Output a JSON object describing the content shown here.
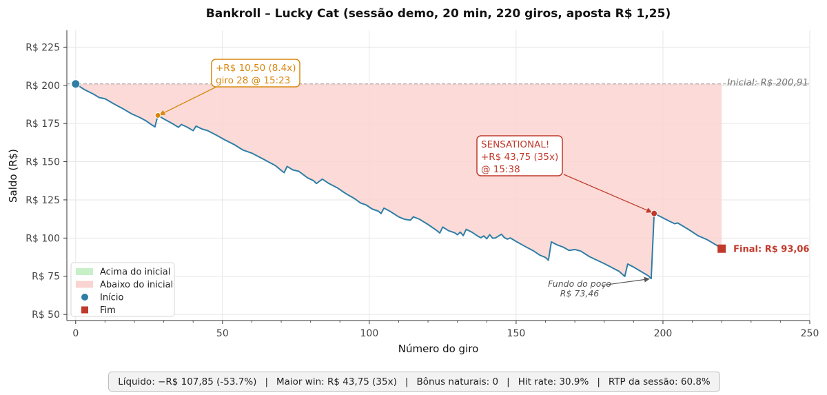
{
  "chart_data": {
    "type": "line",
    "title": "Bankroll – Lucky Cat (sessão demo, 20 min, 220 giros, aposta R$ 1,25)",
    "xlabel": "Número do giro",
    "ylabel": "Saldo (R$)",
    "xlim": [
      -3,
      250
    ],
    "ylim": [
      46,
      236
    ],
    "x_ticks": [
      0,
      50,
      100,
      150,
      200,
      250
    ],
    "y_ticks": [
      50,
      75,
      100,
      125,
      150,
      175,
      200,
      225
    ],
    "y_tick_labels": [
      "R$ 50",
      "R$ 75",
      "R$ 100",
      "R$ 125",
      "R$ 150",
      "R$ 175",
      "R$ 200",
      "R$ 225"
    ],
    "grid": true,
    "initial_balance": 200.91,
    "initial_label": "Inicial: R$ 200,91",
    "series": [
      {
        "name": "Saldo",
        "color": "#2e7ea6",
        "points": [
          [
            0,
            200.91
          ],
          [
            3,
            197.2
          ],
          [
            6,
            194.3
          ],
          [
            8,
            192.0
          ],
          [
            10,
            191.2
          ],
          [
            13,
            187.9
          ],
          [
            16,
            184.8
          ],
          [
            19,
            181.4
          ],
          [
            22,
            178.8
          ],
          [
            24,
            176.7
          ],
          [
            26,
            174.0
          ],
          [
            27,
            172.8
          ],
          [
            28,
            180.3
          ],
          [
            30,
            178.0
          ],
          [
            33,
            174.9
          ],
          [
            35,
            172.5
          ],
          [
            36,
            174.4
          ],
          [
            38,
            172.6
          ],
          [
            40,
            170.3
          ],
          [
            41,
            173.3
          ],
          [
            43,
            171.4
          ],
          [
            45,
            170.3
          ],
          [
            48,
            167.3
          ],
          [
            51,
            164.1
          ],
          [
            54,
            161.2
          ],
          [
            57,
            157.6
          ],
          [
            60,
            155.6
          ],
          [
            62,
            153.6
          ],
          [
            64,
            151.6
          ],
          [
            66,
            149.5
          ],
          [
            68,
            147.5
          ],
          [
            70,
            144.3
          ],
          [
            71,
            142.8
          ],
          [
            72,
            146.9
          ],
          [
            74,
            144.6
          ],
          [
            76,
            143.7
          ],
          [
            79,
            139.4
          ],
          [
            81,
            137.6
          ],
          [
            82,
            135.7
          ],
          [
            84,
            138.6
          ],
          [
            86,
            136.0
          ],
          [
            89,
            133.0
          ],
          [
            92,
            129.1
          ],
          [
            95,
            125.8
          ],
          [
            97,
            123.0
          ],
          [
            99,
            121.6
          ],
          [
            101,
            119.0
          ],
          [
            103,
            117.7
          ],
          [
            104,
            116.1
          ],
          [
            105,
            119.6
          ],
          [
            107,
            117.6
          ],
          [
            110,
            113.9
          ],
          [
            112,
            112.3
          ],
          [
            114,
            111.7
          ],
          [
            115,
            113.9
          ],
          [
            117,
            112.4
          ],
          [
            120,
            108.9
          ],
          [
            123,
            104.9
          ],
          [
            124,
            103.3
          ],
          [
            125,
            107.2
          ],
          [
            127,
            104.8
          ],
          [
            129,
            103.5
          ],
          [
            130,
            102.2
          ],
          [
            131,
            103.9
          ],
          [
            132,
            101.6
          ],
          [
            133,
            105.7
          ],
          [
            135,
            103.8
          ],
          [
            137,
            101.2
          ],
          [
            138,
            100.2
          ],
          [
            139,
            101.4
          ],
          [
            140,
            99.5
          ],
          [
            141,
            102.2
          ],
          [
            142,
            99.9
          ],
          [
            143,
            100.1
          ],
          [
            145,
            102.5
          ],
          [
            146,
            100.3
          ],
          [
            147,
            99.3
          ],
          [
            148,
            100.1
          ],
          [
            150,
            97.8
          ],
          [
            153,
            94.6
          ],
          [
            156,
            91.5
          ],
          [
            158,
            88.9
          ],
          [
            160,
            87.3
          ],
          [
            161,
            85.5
          ],
          [
            162,
            97.5
          ],
          [
            164,
            95.5
          ],
          [
            166,
            94.1
          ],
          [
            168,
            91.9
          ],
          [
            170,
            92.5
          ],
          [
            172,
            91.5
          ],
          [
            175,
            87.8
          ],
          [
            178,
            85.1
          ],
          [
            180,
            83.3
          ],
          [
            182,
            81.3
          ],
          [
            185,
            78.3
          ],
          [
            187,
            74.9
          ],
          [
            188,
            83.0
          ],
          [
            190,
            81.0
          ],
          [
            193,
            77.6
          ],
          [
            195,
            75.3
          ],
          [
            196,
            73.46
          ],
          [
            197,
            116.1
          ],
          [
            199,
            114.2
          ],
          [
            202,
            111.2
          ],
          [
            204,
            109.4
          ],
          [
            205,
            109.9
          ],
          [
            207,
            107.6
          ],
          [
            209,
            105.3
          ],
          [
            212,
            101.5
          ],
          [
            215,
            99.0
          ],
          [
            218,
            95.6
          ],
          [
            220,
            93.06
          ]
        ]
      }
    ],
    "annotations": [
      {
        "text_lines": [
          "+R$ 10,50 (8.4x)",
          "giro 28 @ 15:23"
        ],
        "x": 28,
        "y": 180.3,
        "color": "#d8870e"
      },
      {
        "text_lines": [
          "SENSATIONAL!",
          "+R$ 43,75 (35x)",
          "@ 15:38"
        ],
        "x": 197,
        "y": 116.1,
        "color": "#c0392b"
      },
      {
        "text_lines": [
          "Fundo do poço",
          "R$ 73,46"
        ],
        "x": 196,
        "y": 73.46,
        "color": "#555555"
      }
    ],
    "start_marker": {
      "x": 0,
      "y": 200.91,
      "color": "#2e7ea6"
    },
    "end_marker": {
      "x": 220,
      "y": 93.06,
      "color": "#c0392b",
      "label": "Final: R$ 93,06"
    },
    "legend": {
      "placement": "lower-left",
      "items": [
        {
          "label": "Acima do inicial",
          "kind": "patch",
          "color": "#c8efc8"
        },
        {
          "label": "Abaixo do inicial",
          "kind": "patch",
          "color": "#fad4d0"
        },
        {
          "label": "Início",
          "kind": "circle",
          "color": "#2e7ea6"
        },
        {
          "label": "Fim",
          "kind": "square",
          "color": "#c0392b"
        }
      ]
    }
  },
  "footer": {
    "parts": [
      "Líquido: −R$ 107,85 (-53.7%)",
      "Maior win: R$ 43,75 (35x)",
      "Bônus naturais: 0",
      "Hit rate: 30.9%",
      "RTP da sessão: 60.8%"
    ]
  }
}
